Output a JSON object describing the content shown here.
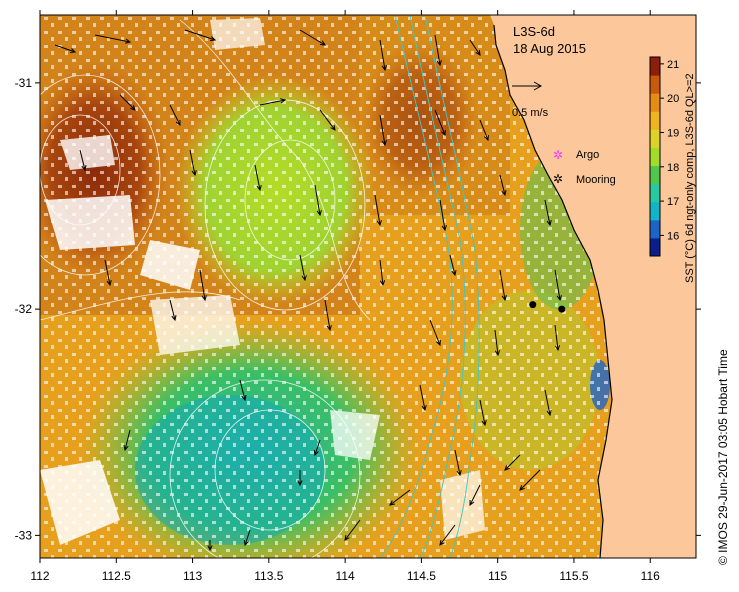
{
  "map": {
    "product": "L3S-6d",
    "date": "18 Aug 2015",
    "extent": {
      "lon": [
        112,
        116.3
      ],
      "lat": [
        -33.1,
        -30.7
      ]
    },
    "x_ticks": [
      {
        "value": 112,
        "label": "112"
      },
      {
        "value": 112.5,
        "label": "112.5"
      },
      {
        "value": 113,
        "label": "113"
      },
      {
        "value": 113.5,
        "label": "113.5"
      },
      {
        "value": 114,
        "label": "114"
      },
      {
        "value": 114.5,
        "label": "114.5"
      },
      {
        "value": 115,
        "label": "115"
      },
      {
        "value": 115.5,
        "label": "115.5"
      },
      {
        "value": 116,
        "label": "116"
      }
    ],
    "y_ticks": [
      {
        "value": -31,
        "label": "-31"
      },
      {
        "value": -32,
        "label": "-32"
      },
      {
        "value": -33,
        "label": "-33"
      }
    ],
    "land_color": "#fcc89b",
    "scale_arrow_label": "0.5 m/s"
  },
  "legend": {
    "argo_label": "Argo",
    "argo_color": "#ff33ff",
    "mooring_label": "Mooring",
    "mooring_color": "#000000"
  },
  "colorbar": {
    "title": "SST (°C) 6d ngt-only comp, L3S-6d QL>=2",
    "range": [
      15.4,
      21.2
    ],
    "ticks": [
      {
        "value": 16,
        "label": "16"
      },
      {
        "value": 17,
        "label": "17"
      },
      {
        "value": 18,
        "label": "18"
      },
      {
        "value": 19,
        "label": "19"
      },
      {
        "value": 20,
        "label": "20"
      },
      {
        "value": 21,
        "label": "21"
      }
    ],
    "colors": [
      "#0a1e8c",
      "#1e64c8",
      "#14b4c8",
      "#28c8a0",
      "#50c850",
      "#a0dc28",
      "#dcd228",
      "#f0b41e",
      "#e68c14",
      "#c85a0a",
      "#8c1e0a"
    ]
  },
  "moorings": [
    {
      "lon": 115.23,
      "lat": -31.98
    },
    {
      "lon": 115.42,
      "lat": -32.0
    }
  ],
  "credit": "© IMOS 29-Jun-2017 03:05 Hobart Time"
}
